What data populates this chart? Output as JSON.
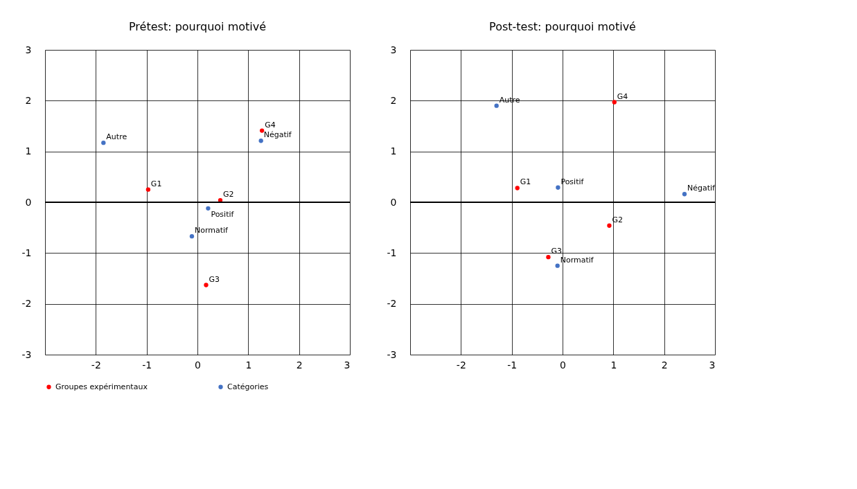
{
  "chart_data": [
    {
      "type": "scatter",
      "title": "Prétest: pourquoi motivé",
      "marker": "circle",
      "grid": true,
      "legend": "bottom",
      "xlim": [
        -3,
        3
      ],
      "ylim": [
        -3,
        3
      ],
      "xticks": [
        {
          "value": -3,
          "label": null
        },
        -2,
        -1,
        0,
        1,
        2,
        3
      ],
      "yticks": [
        -3,
        -2,
        -1,
        0,
        1,
        2,
        3
      ],
      "ref_lines": [
        {
          "axis": "y",
          "value": 0,
          "color": "#000000"
        }
      ],
      "series": [
        {
          "name": "Groupes expérimentaux",
          "color": "#ff0000",
          "x": [
            -0.97,
            0.45,
            0.17,
            1.27
          ],
          "values": [
            0.25,
            0.04,
            -1.63,
            1.41
          ]
        },
        {
          "name": "Catégories",
          "color": "#4472c4",
          "x": [
            -1.85,
            0.21,
            -0.11,
            1.25
          ],
          "values": [
            1.17,
            -0.12,
            -0.67,
            1.21
          ]
        }
      ],
      "annotations": [
        {
          "text": "G1",
          "x": -0.97,
          "y": 0.25
        },
        {
          "text": "G2",
          "x": 0.45,
          "y": 0.04
        },
        {
          "text": "G3",
          "x": 0.17,
          "y": -1.63
        },
        {
          "text": "G4",
          "x": 1.27,
          "y": 1.41
        },
        {
          "text": "Autre",
          "x": -1.85,
          "y": 1.17
        },
        {
          "text": "Positif",
          "x": 0.21,
          "y": -0.12
        },
        {
          "text": "Normatif",
          "x": -0.11,
          "y": -0.67
        },
        {
          "text": "Négatif",
          "x": 1.25,
          "y": 1.21
        }
      ]
    },
    {
      "type": "scatter",
      "title": "Post-test: pourquoi motivé",
      "marker": "circle",
      "grid": true,
      "legend": "bottom",
      "xlim": [
        -3,
        3
      ],
      "ylim": [
        -3,
        3
      ],
      "xticks": [
        {
          "value": -3,
          "label": null
        },
        -2,
        -1,
        0,
        1,
        2,
        3
      ],
      "yticks": [
        -3,
        -2,
        -1,
        0,
        1,
        2,
        3
      ],
      "ref_lines": [
        {
          "axis": "y",
          "value": 0,
          "color": "#000000"
        }
      ],
      "series": [
        {
          "name": "Groupes expérimentaux",
          "color": "#ff0000",
          "x": [
            -0.89,
            0.92,
            -0.28,
            1.02
          ],
          "values": [
            0.28,
            -0.46,
            -1.08,
            1.97
          ]
        },
        {
          "name": "Catégories",
          "color": "#4472c4",
          "x": [
            -1.3,
            -0.09,
            -0.1,
            2.4
          ],
          "values": [
            1.9,
            0.29,
            -1.25,
            0.16
          ]
        }
      ],
      "annotations": [
        {
          "text": "G1",
          "x": -0.89,
          "y": 0.28
        },
        {
          "text": "G2",
          "x": 0.92,
          "y": -0.46
        },
        {
          "text": "G3",
          "x": -0.28,
          "y": -1.08
        },
        {
          "text": "G4",
          "x": 1.02,
          "y": 1.97
        },
        {
          "text": "Autre",
          "x": -1.3,
          "y": 1.9
        },
        {
          "text": "Positif",
          "x": -0.09,
          "y": 0.29
        },
        {
          "text": "Normatif",
          "x": -0.1,
          "y": -1.25
        },
        {
          "text": "Négatif",
          "x": 2.4,
          "y": 0.16
        }
      ]
    }
  ]
}
